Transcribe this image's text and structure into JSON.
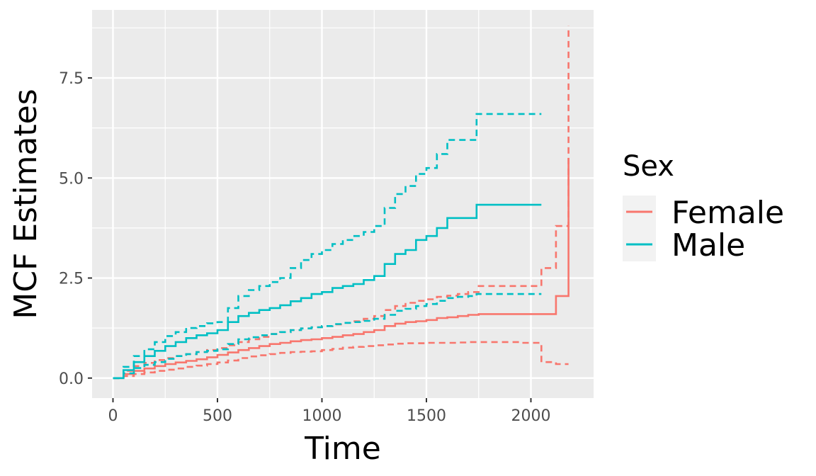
{
  "chart_data": {
    "type": "line",
    "title": "",
    "xlabel": "Time",
    "ylabel": "MCF Estimates",
    "xlim": [
      -100,
      2300
    ],
    "ylim": [
      -0.5,
      9.2
    ],
    "x_ticks": [
      0,
      500,
      1000,
      1500,
      2000
    ],
    "x_tick_labels": [
      "0",
      "500",
      "1000",
      "1500",
      "2000"
    ],
    "y_ticks": [
      0.0,
      2.5,
      5.0,
      7.5
    ],
    "y_tick_labels": [
      "0.0",
      "2.5",
      "5.0",
      "7.5"
    ],
    "grid": true,
    "step": true,
    "legend": {
      "title": "Sex",
      "position": "right",
      "entries": [
        {
          "label": "Female",
          "color": "#F8766D"
        },
        {
          "label": "Male",
          "color": "#00BFC4"
        }
      ]
    },
    "series": [
      {
        "group": "Female",
        "kind": "estimate",
        "color": "#F8766D",
        "dash": "solid",
        "x": [
          0,
          50,
          100,
          150,
          200,
          250,
          300,
          350,
          400,
          450,
          500,
          550,
          600,
          650,
          700,
          750,
          800,
          850,
          900,
          950,
          1000,
          1050,
          1100,
          1150,
          1200,
          1250,
          1300,
          1350,
          1400,
          1450,
          1500,
          1550,
          1600,
          1650,
          1700,
          1750,
          1800,
          1850,
          1900,
          1950,
          2000,
          2050,
          2100,
          2120,
          2150,
          2170,
          2180
        ],
        "y": [
          0,
          0.1,
          0.18,
          0.24,
          0.3,
          0.35,
          0.39,
          0.43,
          0.47,
          0.52,
          0.58,
          0.64,
          0.7,
          0.75,
          0.8,
          0.85,
          0.88,
          0.92,
          0.95,
          0.97,
          1.0,
          1.03,
          1.07,
          1.1,
          1.15,
          1.2,
          1.3,
          1.36,
          1.4,
          1.42,
          1.45,
          1.5,
          1.52,
          1.55,
          1.58,
          1.6,
          1.6,
          1.6,
          1.6,
          1.6,
          1.6,
          1.6,
          1.6,
          2.05,
          2.05,
          2.05,
          5.5
        ]
      },
      {
        "group": "Female",
        "kind": "upper",
        "color": "#F8766D",
        "dash": "dashed",
        "x": [
          0,
          50,
          100,
          150,
          200,
          250,
          300,
          350,
          400,
          450,
          500,
          550,
          600,
          650,
          700,
          750,
          800,
          850,
          900,
          950,
          1000,
          1050,
          1100,
          1150,
          1200,
          1250,
          1300,
          1350,
          1400,
          1450,
          1500,
          1550,
          1600,
          1650,
          1700,
          1750,
          1800,
          1850,
          1900,
          1950,
          2000,
          2050,
          2100,
          2120,
          2150,
          2170,
          2180
        ],
        "y": [
          0,
          0.18,
          0.3,
          0.38,
          0.45,
          0.5,
          0.55,
          0.6,
          0.65,
          0.7,
          0.75,
          0.82,
          0.9,
          0.97,
          1.03,
          1.1,
          1.15,
          1.2,
          1.24,
          1.27,
          1.3,
          1.34,
          1.38,
          1.42,
          1.48,
          1.55,
          1.7,
          1.8,
          1.88,
          1.93,
          1.97,
          2.03,
          2.06,
          2.1,
          2.15,
          2.3,
          2.3,
          2.3,
          2.3,
          2.3,
          2.3,
          2.75,
          2.75,
          3.8,
          3.8,
          3.8,
          8.8
        ]
      },
      {
        "group": "Female",
        "kind": "lower",
        "color": "#F8766D",
        "dash": "dashed",
        "x": [
          0,
          50,
          100,
          150,
          200,
          250,
          300,
          350,
          400,
          450,
          500,
          550,
          600,
          650,
          700,
          750,
          800,
          850,
          900,
          950,
          1000,
          1050,
          1100,
          1150,
          1200,
          1250,
          1300,
          1350,
          1400,
          1450,
          1500,
          1550,
          1600,
          1650,
          1700,
          1750,
          1800,
          1850,
          1900,
          1950,
          2000,
          2050,
          2100,
          2120,
          2150,
          2170,
          2180
        ],
        "y": [
          0,
          0.05,
          0.1,
          0.14,
          0.18,
          0.21,
          0.24,
          0.28,
          0.31,
          0.35,
          0.39,
          0.44,
          0.5,
          0.54,
          0.57,
          0.6,
          0.63,
          0.65,
          0.66,
          0.67,
          0.7,
          0.73,
          0.76,
          0.78,
          0.8,
          0.82,
          0.84,
          0.86,
          0.87,
          0.87,
          0.88,
          0.88,
          0.88,
          0.89,
          0.9,
          0.9,
          0.9,
          0.9,
          0.9,
          0.88,
          0.88,
          0.4,
          0.4,
          0.35,
          0.35,
          0.35,
          0.35
        ]
      },
      {
        "group": "Male",
        "kind": "estimate",
        "color": "#00BFC4",
        "dash": "solid",
        "x": [
          0,
          50,
          100,
          150,
          200,
          250,
          300,
          350,
          400,
          450,
          500,
          550,
          600,
          650,
          700,
          750,
          800,
          850,
          900,
          950,
          1000,
          1050,
          1100,
          1150,
          1200,
          1250,
          1300,
          1350,
          1400,
          1450,
          1500,
          1550,
          1600,
          1650,
          1700,
          1740,
          1800,
          1850,
          1900,
          1950,
          2000,
          2050
        ],
        "y": [
          0,
          0.2,
          0.4,
          0.55,
          0.68,
          0.8,
          0.9,
          1.0,
          1.07,
          1.12,
          1.2,
          1.4,
          1.55,
          1.63,
          1.7,
          1.75,
          1.82,
          1.92,
          2.0,
          2.1,
          2.15,
          2.25,
          2.3,
          2.35,
          2.45,
          2.55,
          2.85,
          3.1,
          3.2,
          3.45,
          3.55,
          3.75,
          4.0,
          4.0,
          4.0,
          4.33,
          4.33,
          4.33,
          4.33,
          4.33,
          4.33,
          4.33
        ]
      },
      {
        "group": "Male",
        "kind": "upper",
        "color": "#00BFC4",
        "dash": "dashed",
        "x": [
          0,
          50,
          100,
          150,
          200,
          250,
          300,
          350,
          400,
          450,
          500,
          550,
          600,
          650,
          700,
          750,
          800,
          850,
          900,
          950,
          1000,
          1050,
          1100,
          1150,
          1200,
          1250,
          1300,
          1350,
          1400,
          1450,
          1500,
          1550,
          1600,
          1650,
          1700,
          1740,
          1800,
          1850,
          1900,
          1950,
          2000,
          2050
        ],
        "y": [
          0,
          0.28,
          0.55,
          0.72,
          0.9,
          1.05,
          1.15,
          1.25,
          1.3,
          1.37,
          1.4,
          1.75,
          2.05,
          2.2,
          2.3,
          2.4,
          2.5,
          2.75,
          2.95,
          3.1,
          3.2,
          3.35,
          3.45,
          3.55,
          3.65,
          3.8,
          4.25,
          4.6,
          4.8,
          5.1,
          5.25,
          5.6,
          5.95,
          5.95,
          5.95,
          6.6,
          6.6,
          6.6,
          6.6,
          6.6,
          6.6,
          6.6
        ]
      },
      {
        "group": "Male",
        "kind": "lower",
        "color": "#00BFC4",
        "dash": "dashed",
        "x": [
          0,
          50,
          100,
          150,
          200,
          250,
          300,
          350,
          400,
          450,
          500,
          550,
          600,
          650,
          700,
          750,
          800,
          850,
          900,
          950,
          1000,
          1050,
          1100,
          1150,
          1200,
          1250,
          1300,
          1350,
          1400,
          1450,
          1500,
          1550,
          1600,
          1650,
          1700,
          1740,
          1800,
          1850,
          1900,
          1950,
          2000,
          2050
        ],
        "y": [
          0,
          0.12,
          0.25,
          0.33,
          0.4,
          0.48,
          0.55,
          0.6,
          0.65,
          0.68,
          0.72,
          0.85,
          0.97,
          1.02,
          1.07,
          1.1,
          1.15,
          1.2,
          1.24,
          1.27,
          1.3,
          1.35,
          1.38,
          1.4,
          1.43,
          1.48,
          1.58,
          1.68,
          1.73,
          1.8,
          1.85,
          1.93,
          2.0,
          2.03,
          2.05,
          2.1,
          2.1,
          2.1,
          2.1,
          2.1,
          2.1,
          2.1
        ]
      }
    ]
  }
}
